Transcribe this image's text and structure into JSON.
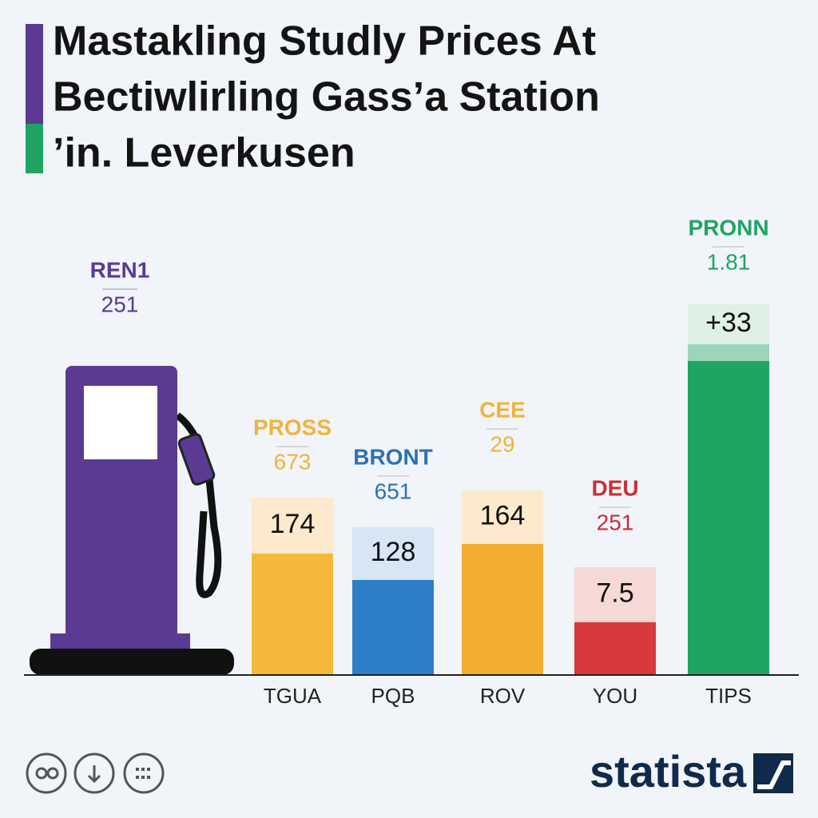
{
  "header": {
    "title_lines": [
      "Mastakling Studly Prices At",
      "Bectiwlirling Gass’a Station",
      "’in. Leverkusen"
    ]
  },
  "pump": {
    "label": "REN1",
    "price": 251,
    "color": "#5b3a93"
  },
  "bars": [
    {
      "category": "TGUA",
      "label": "PROSS",
      "price": 673,
      "value": 174,
      "color": "#f6b83a",
      "light": "#fde9cc",
      "text_color": "#f0b33a"
    },
    {
      "category": "PQB",
      "label": "BRONT",
      "price": 651,
      "value": 128,
      "color": "#2f7fc8",
      "light": "#d6e6f5",
      "text_color": "#2a72b8"
    },
    {
      "category": "ROV",
      "label": "CEE",
      "price": 29,
      "value": 164,
      "color": "#f2ad2e",
      "light": "#fde9cc",
      "text_color": "#f0b33a"
    },
    {
      "category": "YOU",
      "label": "DEU",
      "price": 251,
      "value": 7.5,
      "color": "#d63a3a",
      "light": "#f6d9d7",
      "text_color": "#c8303a"
    },
    {
      "category": "TIPS",
      "label": "PRONN",
      "price": 1.81,
      "value": "+33",
      "color": "#1fa463",
      "light": "#dff0e6",
      "text_color": "#1fa463"
    }
  ],
  "footer": {
    "logo": "statista"
  }
}
